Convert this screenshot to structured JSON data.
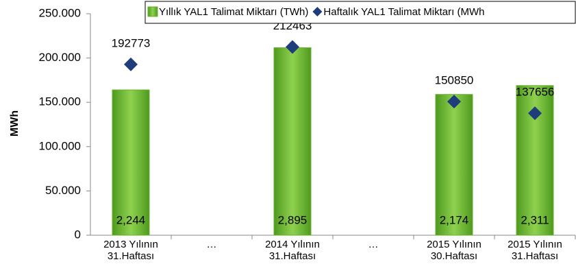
{
  "chart_data": {
    "type": "bar",
    "y_label": "MWh",
    "categories": [
      "2013 Yılının\n31.Haftası",
      "…",
      "2014 Yılının\n31.Haftası",
      "…",
      "2015 Yılının\n30.Haftası",
      "2015 Yılının\n31.Haftası"
    ],
    "series": [
      {
        "name": "Yıllık YAL1 Talimat Miktarı (TWh)",
        "type": "bar",
        "axis": "y2",
        "color": "#66b32e",
        "values": [
          2.244,
          null,
          2.895,
          null,
          2.174,
          2.311
        ],
        "value_labels": [
          "2,244",
          null,
          "2,895",
          null,
          "2,174",
          "2,311"
        ]
      },
      {
        "name": "Haftalık YAL1 Talimat Miktarı (MWh",
        "type": "scatter",
        "color": "#1f3d7a",
        "values": [
          192773,
          null,
          212463,
          null,
          150850,
          137656
        ]
      }
    ],
    "ylim": [
      0,
      250000
    ],
    "yticks": [
      0,
      {
        "value": 50000,
        "label": "50.000"
      },
      {
        "value": 100000,
        "label": "100.000"
      },
      {
        "value": 150000,
        "label": "150.000"
      },
      {
        "value": 200000,
        "label": "200.000"
      },
      {
        "value": 250000,
        "label": "250.000"
      }
    ],
    "y2lim": [
      0,
      3.42
    ],
    "legend": "top-right"
  }
}
